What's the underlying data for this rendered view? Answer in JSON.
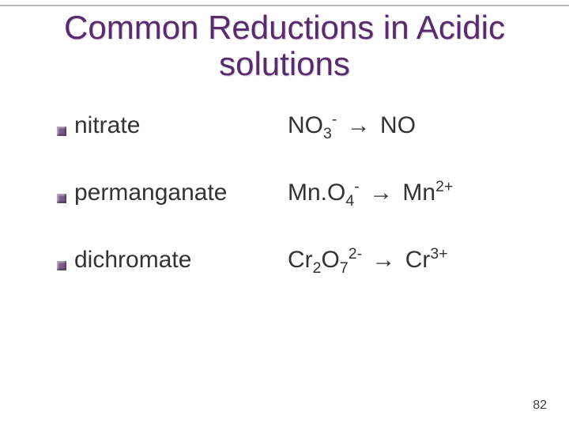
{
  "title_line1": "Common Reductions in Acidic",
  "title_line2": "solutions",
  "rows": [
    {
      "label": "nitrate",
      "lhs_html": "NO<sub>3</sub><sup>-</sup>",
      "rhs_html": "NO"
    },
    {
      "label": "permanganate",
      "lhs_html": "Mn.O<sub>4</sub><sup>-</sup>",
      "rhs_html": "Mn<sup>2+</sup>"
    },
    {
      "label": "dichromate",
      "lhs_html": "Cr<sub>2</sub>O<sub>7</sub><sup>2-</sup>",
      "rhs_html": "Cr<sup>3+</sup>"
    }
  ],
  "arrow": "→",
  "page_number": "82",
  "colors": {
    "title": "#5a2a6e",
    "bullet": "#7a5a8a",
    "text": "#333333",
    "background": "#ffffff",
    "top_rule": "#b8b8b8"
  },
  "fontsize": {
    "title": 42,
    "body": 30,
    "pagenum": 16
  }
}
